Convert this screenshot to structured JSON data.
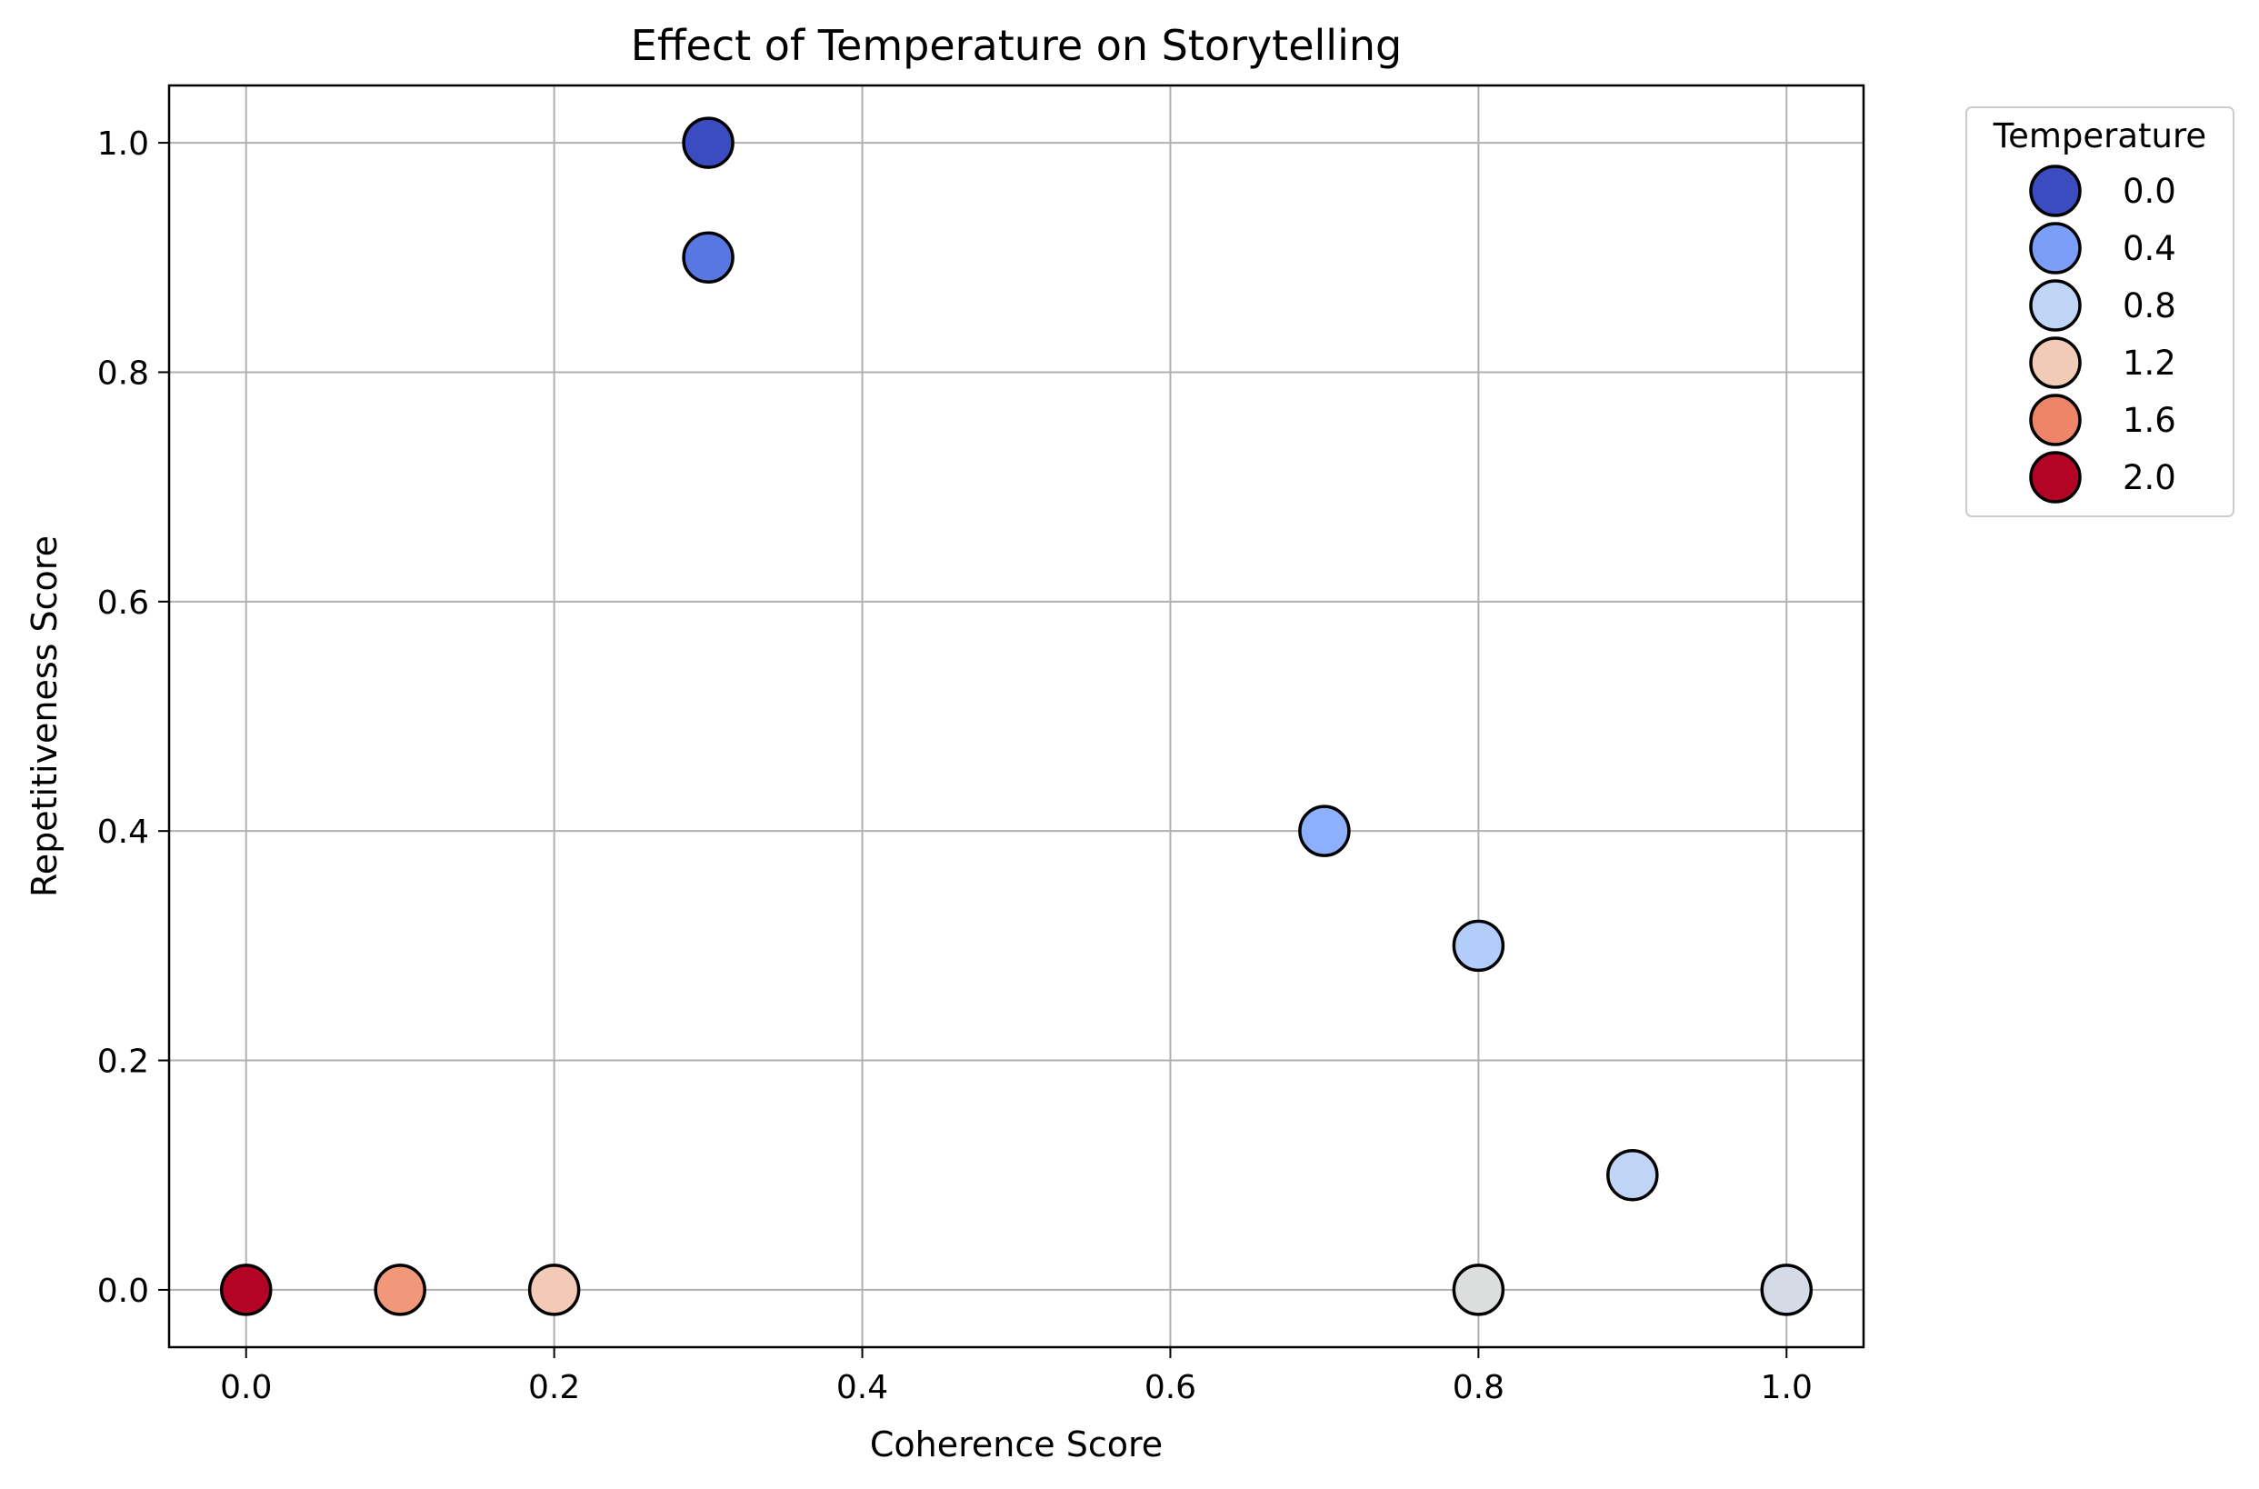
{
  "chart_data": {
    "type": "scatter",
    "title": "Effect of Temperature on Storytelling",
    "xlabel": "Coherence Score",
    "ylabel": "Repetitiveness Score",
    "xlim": [
      -0.05,
      1.05
    ],
    "ylim": [
      -0.05,
      1.05
    ],
    "xticks": [
      0.0,
      0.2,
      0.4,
      0.6,
      0.8,
      1.0
    ],
    "yticks": [
      0.0,
      0.2,
      0.4,
      0.6,
      0.8,
      1.0
    ],
    "grid": true,
    "colormap": "coolwarm",
    "points": [
      {
        "x": 0.3,
        "y": 1.0,
        "color": "#3b4cc0"
      },
      {
        "x": 0.3,
        "y": 0.9,
        "color": "#5977e3"
      },
      {
        "x": 0.7,
        "y": 0.4,
        "color": "#8db0fe"
      },
      {
        "x": 0.8,
        "y": 0.3,
        "color": "#b3cdfb"
      },
      {
        "x": 0.9,
        "y": 0.1,
        "color": "#c0d4f5"
      },
      {
        "x": 1.0,
        "y": 0.0,
        "color": "#d4dbe6"
      },
      {
        "x": 0.8,
        "y": 0.0,
        "color": "#dcdddd"
      },
      {
        "x": 0.2,
        "y": 0.0,
        "color": "#f2cab5"
      },
      {
        "x": 0.1,
        "y": 0.0,
        "color": "#f1977a"
      },
      {
        "x": 0.0,
        "y": 0.0,
        "color": "#b40426"
      }
    ],
    "legend": {
      "title": "Temperature",
      "placement": "outside-upper-right",
      "entries": [
        {
          "label": "0.0",
          "color": "#3b4cc0"
        },
        {
          "label": "0.4",
          "color": "#7b9ff9"
        },
        {
          "label": "0.8",
          "color": "#c0d4f5"
        },
        {
          "label": "1.2",
          "color": "#f2cbb7"
        },
        {
          "label": "1.6",
          "color": "#ee8468"
        },
        {
          "label": "2.0",
          "color": "#b40426"
        }
      ]
    }
  }
}
